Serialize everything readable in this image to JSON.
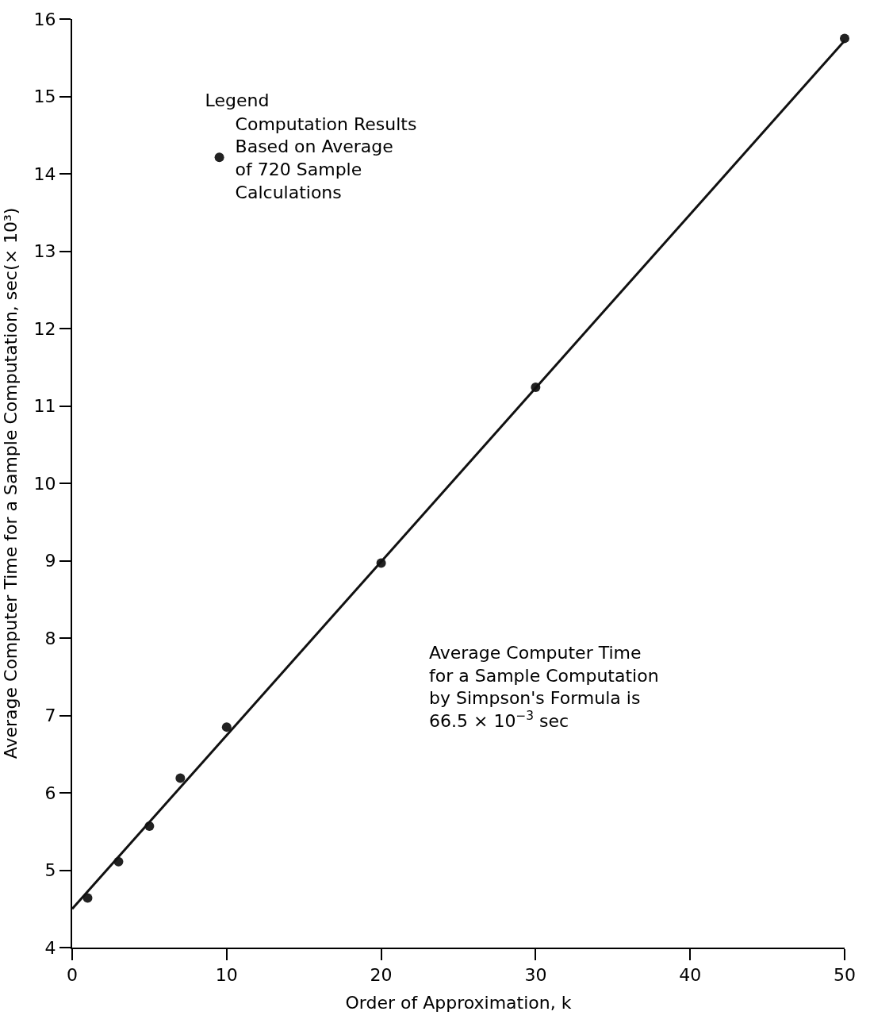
{
  "chart_data": {
    "type": "scatter",
    "xlabel": "Order of Approximation, k",
    "ylabel": "Average Computer Time for a Sample Computation, sec(× 10³)",
    "legend_title": "Legend",
    "x": [
      1,
      3,
      5,
      7,
      10,
      20,
      30,
      50
    ],
    "series": [
      {
        "name": "Computation Results\nBased on Average\nof 720 Sample\nCalculations",
        "color": "#222222",
        "marker": "circle",
        "values": [
          4.64,
          5.11,
          5.57,
          6.19,
          6.85,
          8.97,
          11.24,
          15.75
        ]
      },
      {
        "type": "line",
        "marker": "none",
        "color": "#111111",
        "x": [
          0,
          50
        ],
        "values": [
          4.5,
          15.72
        ]
      }
    ],
    "annotations": [
      "Average Computer Time\nfor a Sample Computation\nby Simpson's Formula is\n66.5 × 10$^{−3}$ sec"
    ],
    "xlim": [
      0,
      50
    ],
    "xticks": [
      0,
      10,
      20,
      30,
      40,
      50
    ],
    "ylim": [
      4,
      16
    ],
    "yticks": [
      4,
      5,
      6,
      7,
      8,
      9,
      10,
      11,
      12,
      13,
      14,
      15,
      16
    ],
    "legend": "top left"
  }
}
